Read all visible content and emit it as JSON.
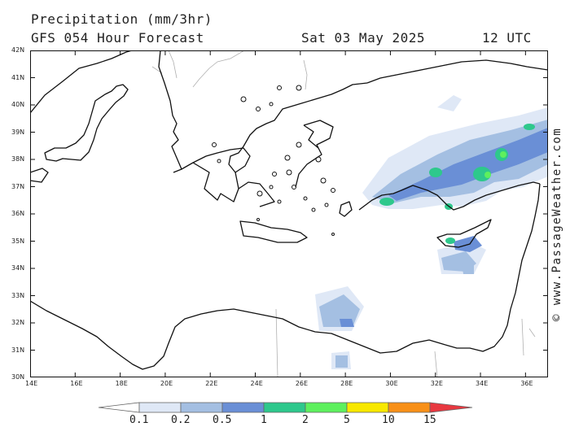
{
  "header": {
    "title": "Precipitation (mm/3hr)",
    "subtitle": "GFS 054 Hour Forecast",
    "date": "Sat 03 May 2025",
    "time": "12 UTC"
  },
  "credit": "© www.PassageWeather.com",
  "map": {
    "lon_labels": [
      "14E",
      "16E",
      "18E",
      "20E",
      "22E",
      "24E",
      "26E",
      "28E",
      "30E",
      "32E",
      "34E",
      "36E"
    ],
    "lat_labels": [
      "42N",
      "41N",
      "40N",
      "39N",
      "38N",
      "37N",
      "36N",
      "35N",
      "34N",
      "33N",
      "32N",
      "31N",
      "30N"
    ],
    "lon_range": [
      14,
      37
    ],
    "lat_range": [
      30,
      42
    ],
    "colors": {
      "land": "#ffffff",
      "sea": "#ffffff",
      "coast": "#111111",
      "border": "#b0b0b0"
    }
  },
  "legend": {
    "thresholds": [
      "0.1",
      "0.2",
      "0.5",
      "1",
      "2",
      "5",
      "10",
      "15"
    ],
    "colors": [
      "#ffffff",
      "#dfe8f6",
      "#a4bfe2",
      "#6a8fd6",
      "#2ec88c",
      "#5ef05e",
      "#f8e800",
      "#f89018",
      "#e83840"
    ]
  }
}
